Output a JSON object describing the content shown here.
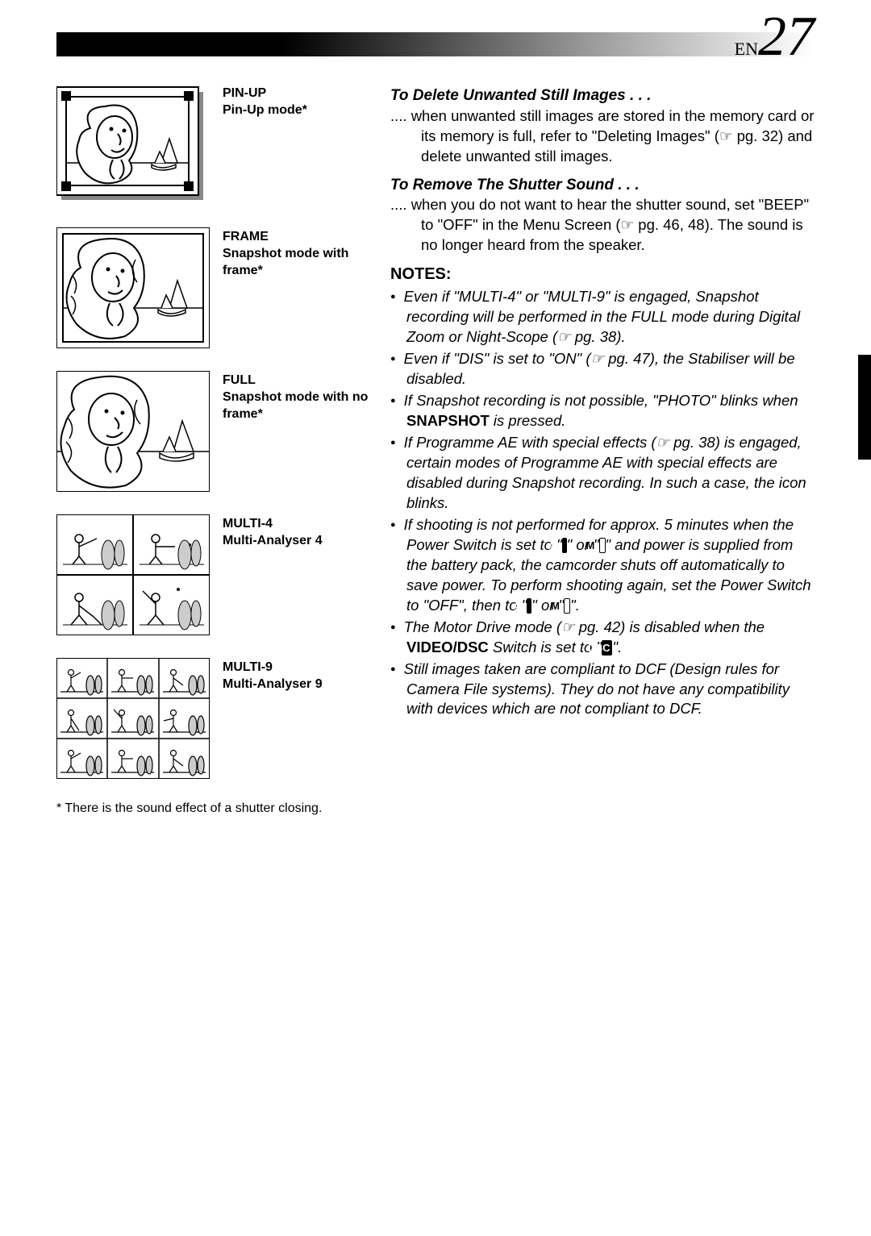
{
  "pageLabel": {
    "prefix": "EN",
    "number": "27"
  },
  "modes": [
    {
      "title": "PIN-UP",
      "desc": "Pin-Up mode*"
    },
    {
      "title": "FRAME",
      "desc": "Snapshot mode with frame*"
    },
    {
      "title": "FULL",
      "desc": "Snapshot mode with no frame*"
    },
    {
      "title": "MULTI-4",
      "desc": "Multi-Analyser 4"
    },
    {
      "title": "MULTI-9",
      "desc": "Multi-Analyser 9"
    }
  ],
  "footnote": "* There is the sound effect of a shutter closing.",
  "sections": [
    {
      "heading": "To Delete Unwanted Still Images . . .",
      "body": ".... when unwanted still images are stored in the memory card or its memory is full, refer to \"Deleting Images\" (☞ pg. 32) and delete unwanted still images."
    },
    {
      "heading": "To Remove The Shutter Sound . . .",
      "body": ".... when you do not want to hear the shutter sound, set \"BEEP\" to \"OFF\" in the Menu Screen (☞ pg. 46, 48). The sound is no longer heard from the speaker."
    }
  ],
  "notesHeading": "NOTES:",
  "notes": [
    "Even if \"MULTI-4\" or \"MULTI-9\" is engaged, Snapshot recording will be performed in the FULL mode during Digital Zoom or Night-Scope (☞ pg. 38).",
    "Even if \"DIS\" is set to \"ON\" (☞ pg. 47), the Stabiliser will be disabled.",
    "If Snapshot recording is not possible, \"PHOTO\" blinks when <b style='font-style:normal'>SNAPSHOT</b> is pressed.",
    "If Programme AE with special effects (☞ pg. 38) is engaged, certain modes of Programme AE with special effects are disabled during Snapshot recording. In such a case, the icon blinks.",
    "If shooting is not performed for approx. 5 minutes when the Power Switch is set to \"<span class='blackbox'>A</span>\" or \"<span class='whitebox'>M</span>\" and power is supplied from the battery pack, the camcorder shuts off automatically to save power. To perform shooting again, set the Power Switch to \"OFF\", then to \"<span class='blackbox'>A</span>\" or \"<span class='whitebox'>M</span>\".",
    "The Motor Drive mode (☞ pg. 42) is disabled when the <b style='font-style:normal'>VIDEO/DSC</b> Switch is set to \"<span class='blackbox'>DSC</span>\".",
    "Still images taken are compliant to DCF (Design rules for Camera File systems). They do not have any compatibility with devices which are not compliant to DCF."
  ],
  "colors": {
    "black": "#000000",
    "gray": "#888888",
    "lightgray": "#cccccc",
    "white": "#ffffff"
  }
}
